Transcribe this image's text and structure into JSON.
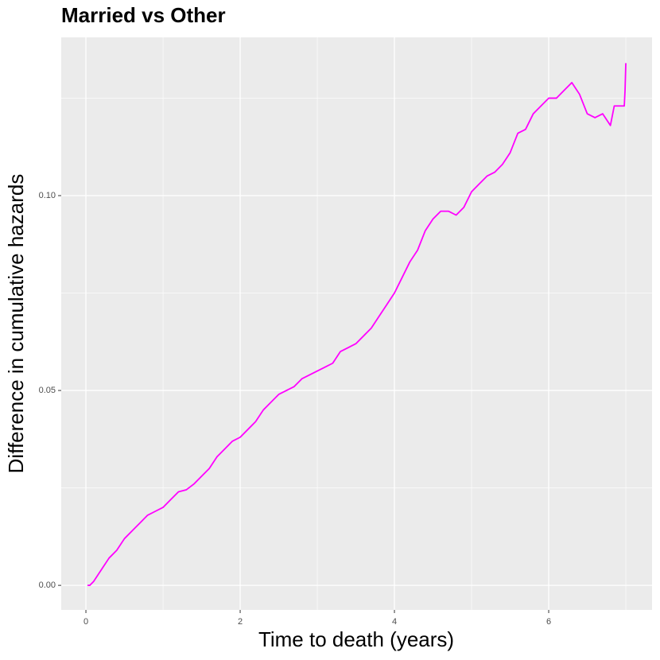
{
  "chart_data": {
    "type": "line",
    "title": "Married vs Other",
    "x_label": "Time to death (years)",
    "y_label": "Difference in cumulative hazards",
    "x": [
      0.02,
      0.05,
      0.1,
      0.2,
      0.3,
      0.4,
      0.5,
      0.6,
      0.7,
      0.8,
      0.9,
      1.0,
      1.1,
      1.2,
      1.3,
      1.4,
      1.5,
      1.6,
      1.7,
      1.8,
      1.9,
      2.0,
      2.1,
      2.2,
      2.3,
      2.4,
      2.5,
      2.6,
      2.7,
      2.8,
      2.9,
      3.0,
      3.1,
      3.2,
      3.3,
      3.4,
      3.5,
      3.6,
      3.7,
      3.8,
      3.9,
      4.0,
      4.1,
      4.2,
      4.3,
      4.4,
      4.5,
      4.6,
      4.7,
      4.8,
      4.9,
      5.0,
      5.1,
      5.2,
      5.3,
      5.4,
      5.5,
      5.6,
      5.7,
      5.8,
      5.9,
      6.0,
      6.1,
      6.2,
      6.3,
      6.4,
      6.5,
      6.6,
      6.7,
      6.8,
      6.85,
      6.98,
      6.99,
      7.0
    ],
    "series": [
      {
        "name": "Married vs Other",
        "color": "#ff00ff",
        "values": [
          0,
          0,
          0.001,
          0.004,
          0.007,
          0.009,
          0.012,
          0.014,
          0.016,
          0.018,
          0.019,
          0.02,
          0.022,
          0.024,
          0.0245,
          0.026,
          0.028,
          0.03,
          0.033,
          0.035,
          0.037,
          0.038,
          0.04,
          0.042,
          0.045,
          0.047,
          0.049,
          0.05,
          0.051,
          0.053,
          0.054,
          0.055,
          0.056,
          0.057,
          0.06,
          0.061,
          0.062,
          0.064,
          0.066,
          0.069,
          0.072,
          0.075,
          0.079,
          0.083,
          0.086,
          0.091,
          0.094,
          0.096,
          0.096,
          0.095,
          0.097,
          0.101,
          0.103,
          0.105,
          0.106,
          0.108,
          0.111,
          0.116,
          0.117,
          0.121,
          0.123,
          0.125,
          0.125,
          0.127,
          0.129,
          0.126,
          0.121,
          0.12,
          0.121,
          0.118,
          0.123,
          0.123,
          0.127,
          0.134
        ]
      }
    ],
    "xlim": [
      -0.32,
      7.34
    ],
    "ylim": [
      -0.0063,
      0.1406
    ],
    "xticks": [
      0,
      2,
      4,
      6
    ],
    "yticks": [
      {
        "value": 0,
        "label": "0.00"
      },
      {
        "value": 0.05,
        "label": "0.05"
      },
      {
        "value": 0.1,
        "label": "0.10"
      }
    ],
    "grid": true
  }
}
